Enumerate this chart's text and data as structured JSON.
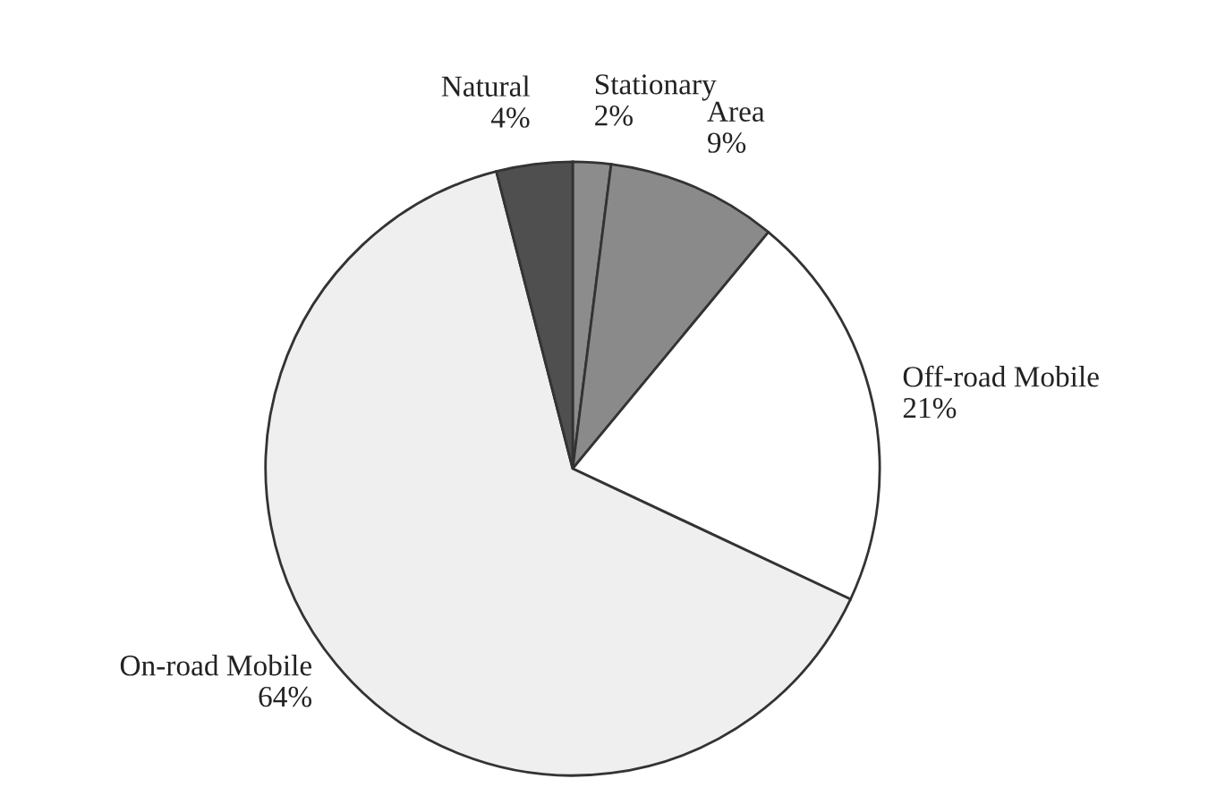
{
  "chart_data": {
    "type": "pie",
    "categories": [
      "Stationary\n2%",
      "Area\n9%",
      "Off-road Mobile\n21%",
      "On-road Mobile\n64%",
      "Natural\n4%"
    ],
    "values": [
      2,
      9,
      21,
      64,
      4
    ],
    "colors": [
      "#8c8c8c",
      "#8a8a8a",
      "#ffffff",
      "#efefef",
      "#4f4f4f"
    ]
  }
}
